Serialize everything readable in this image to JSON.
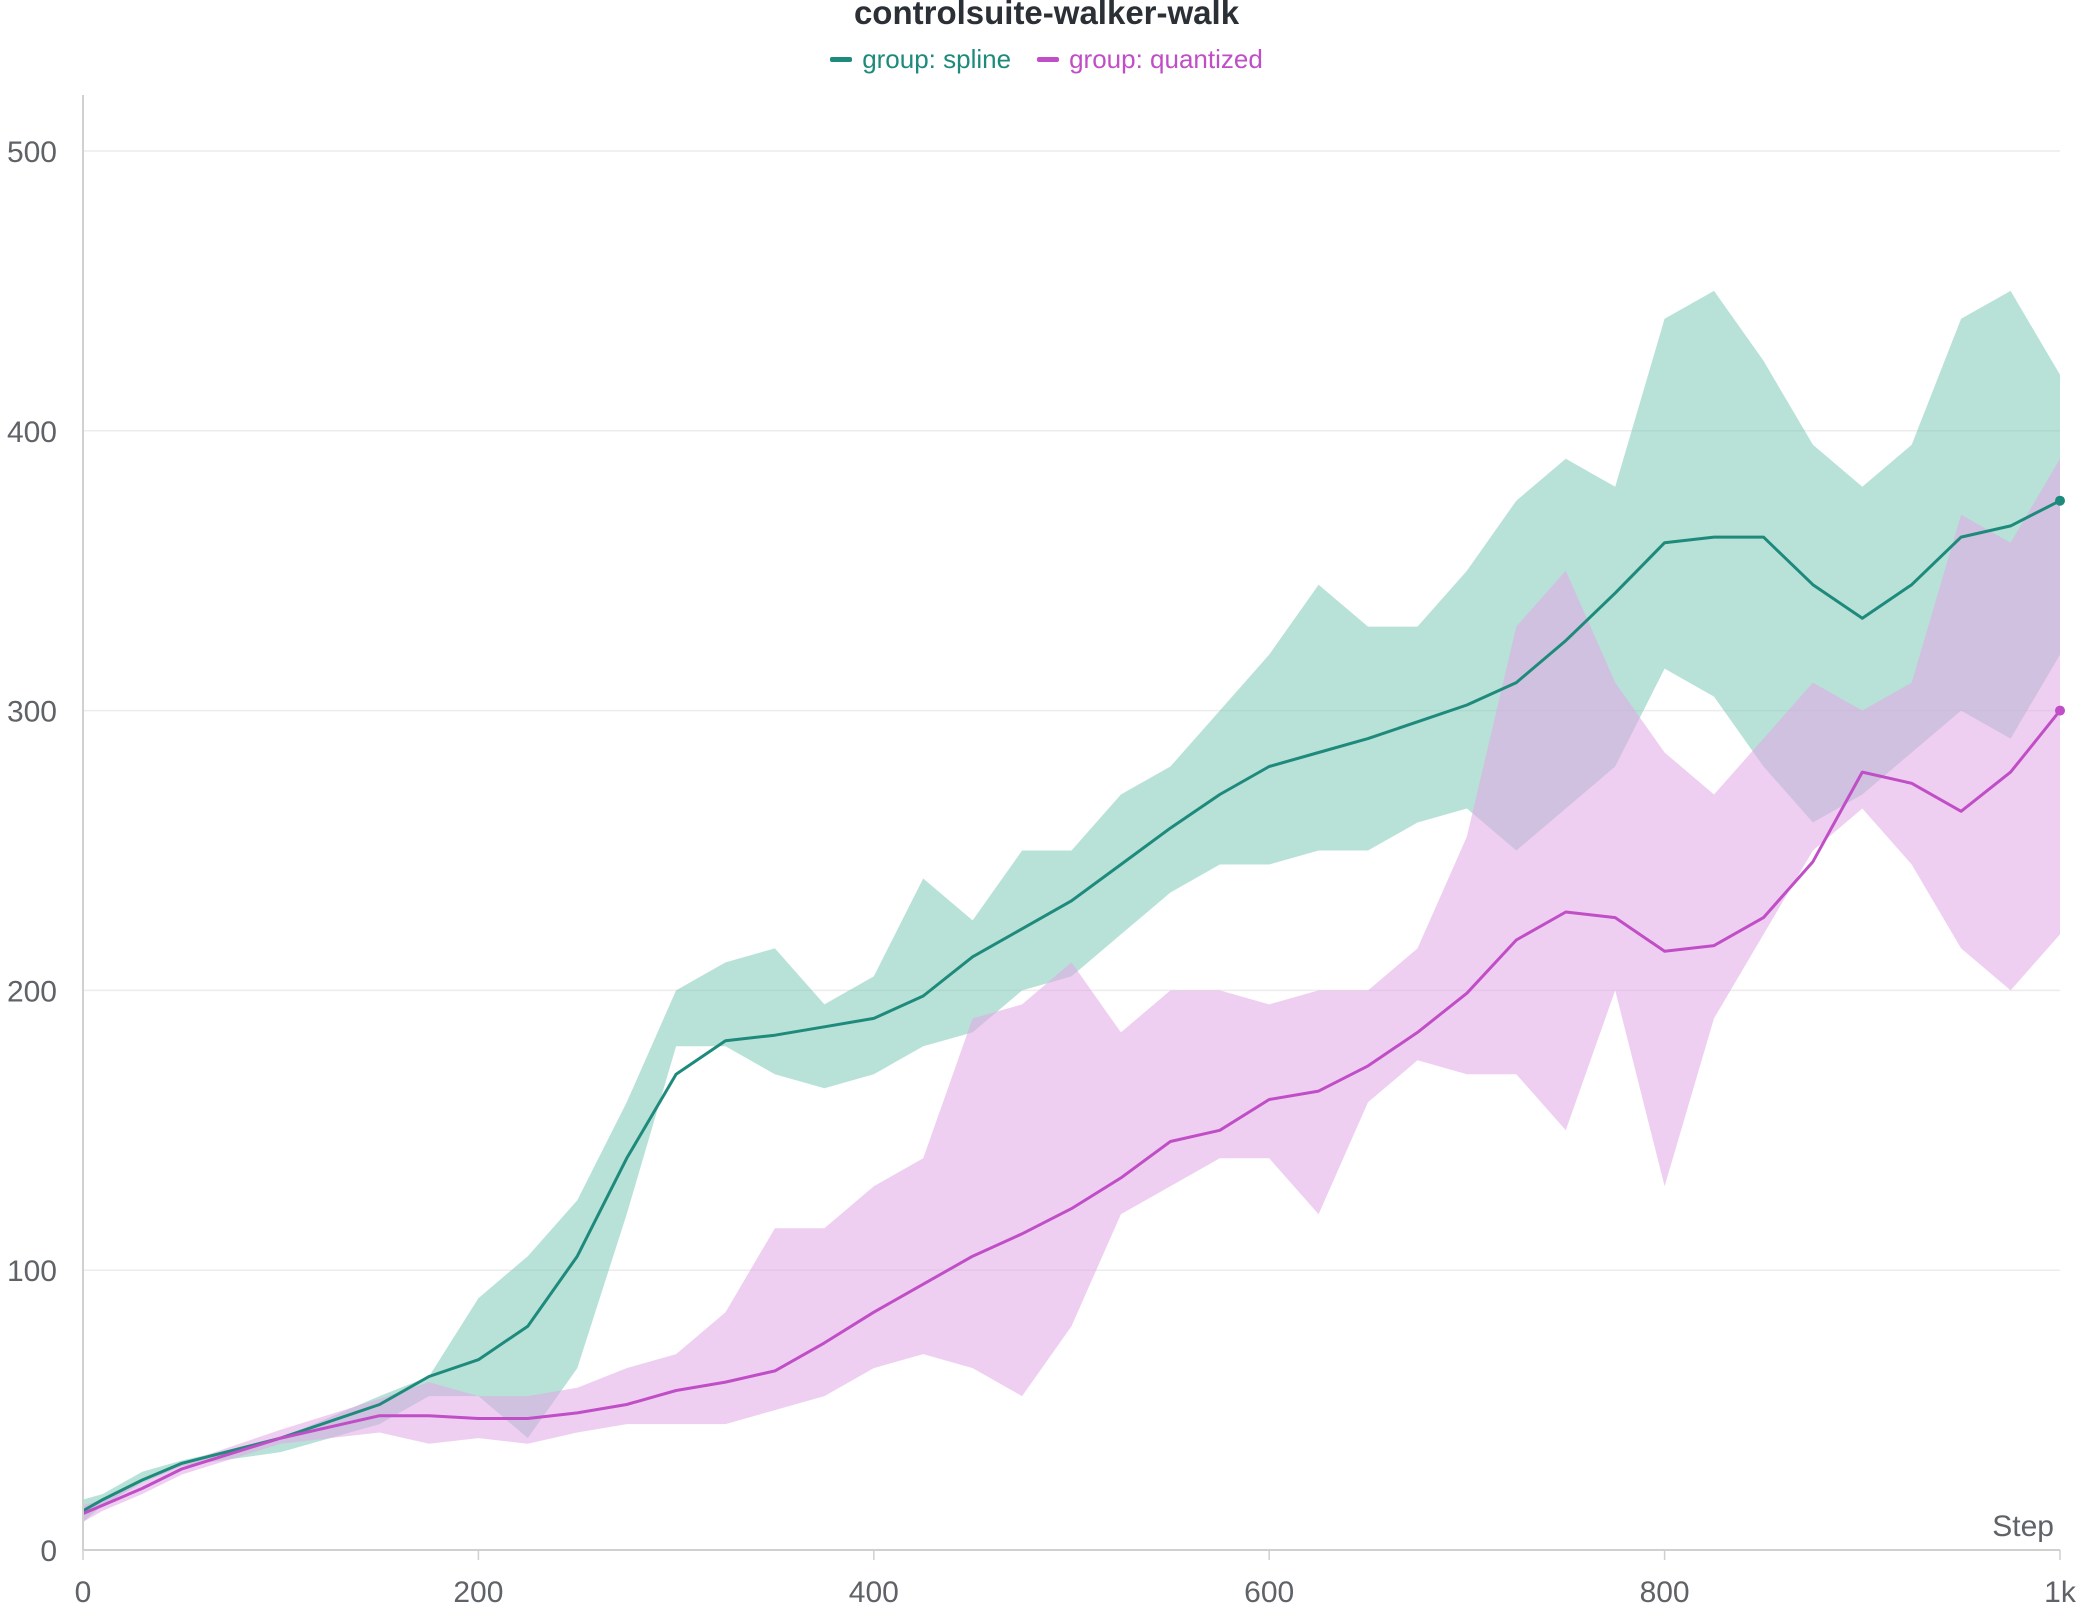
{
  "chart_data": {
    "type": "line",
    "title": "controlsuite-walker-walk",
    "xlabel": "Step",
    "ylabel": "",
    "xlim": [
      0,
      1000
    ],
    "ylim": [
      0,
      520
    ],
    "x_ticks": [
      0,
      200,
      400,
      600,
      800,
      1000
    ],
    "x_tick_labels": [
      "0",
      "200",
      "400",
      "600",
      "800",
      "1k"
    ],
    "y_ticks": [
      0,
      100,
      200,
      300,
      400,
      500
    ],
    "y_tick_labels": [
      "0",
      "100",
      "200",
      "300",
      "400",
      "500"
    ],
    "grid": true,
    "legend_position": "top-center",
    "series": [
      {
        "name": "group: spline",
        "color": "#1e8a7c",
        "band_color": "#7ec8b8",
        "x": [
          0,
          10,
          30,
          50,
          100,
          150,
          175,
          200,
          225,
          250,
          275,
          300,
          325,
          350,
          375,
          400,
          425,
          450,
          475,
          500,
          525,
          550,
          575,
          600,
          625,
          650,
          675,
          700,
          725,
          750,
          775,
          800,
          825,
          850,
          875,
          900,
          925,
          950,
          975,
          1000
        ],
        "values": [
          14,
          18,
          25,
          31,
          40,
          52,
          62,
          68,
          80,
          105,
          140,
          170,
          182,
          184,
          187,
          190,
          198,
          212,
          222,
          232,
          245,
          258,
          270,
          280,
          285,
          290,
          296,
          302,
          310,
          325,
          342,
          360,
          362,
          362,
          345,
          333,
          345,
          362,
          366,
          375
        ],
        "lower": [
          10,
          16,
          24,
          30,
          35,
          45,
          55,
          55,
          40,
          65,
          120,
          180,
          180,
          170,
          165,
          170,
          180,
          185,
          200,
          205,
          220,
          235,
          245,
          245,
          250,
          250,
          260,
          265,
          250,
          265,
          280,
          315,
          305,
          280,
          260,
          270,
          285,
          300,
          290,
          320
        ],
        "upper": [
          18,
          20,
          28,
          32,
          40,
          55,
          62,
          90,
          105,
          125,
          160,
          200,
          210,
          215,
          195,
          205,
          240,
          225,
          250,
          250,
          270,
          280,
          300,
          320,
          345,
          330,
          330,
          350,
          375,
          390,
          380,
          440,
          450,
          425,
          395,
          380,
          395,
          440,
          450,
          420
        ]
      },
      {
        "name": "group: quantized",
        "color": "#c04ec6",
        "band_color": "#e2a8e6",
        "x": [
          0,
          10,
          30,
          50,
          100,
          150,
          175,
          200,
          225,
          250,
          275,
          300,
          325,
          350,
          375,
          400,
          425,
          450,
          475,
          500,
          525,
          550,
          575,
          600,
          625,
          650,
          675,
          700,
          725,
          750,
          775,
          800,
          825,
          850,
          875,
          900,
          925,
          950,
          975,
          1000
        ],
        "values": [
          13,
          16,
          22,
          29,
          40,
          48,
          48,
          47,
          47,
          49,
          52,
          57,
          60,
          64,
          74,
          85,
          95,
          105,
          113,
          122,
          133,
          146,
          150,
          161,
          164,
          173,
          185,
          199,
          218,
          228,
          226,
          214,
          216,
          226,
          246,
          278,
          274,
          264,
          278,
          300
        ],
        "lower": [
          10,
          14,
          20,
          27,
          38,
          42,
          38,
          40,
          38,
          42,
          45,
          45,
          45,
          50,
          55,
          65,
          70,
          65,
          55,
          80,
          120,
          130,
          140,
          140,
          120,
          160,
          175,
          170,
          170,
          150,
          200,
          130,
          190,
          220,
          250,
          265,
          245,
          215,
          200,
          220
        ],
        "upper": [
          16,
          18,
          24,
          31,
          43,
          54,
          60,
          55,
          55,
          58,
          65,
          70,
          85,
          115,
          115,
          130,
          140,
          190,
          195,
          210,
          185,
          200,
          200,
          195,
          200,
          200,
          215,
          255,
          330,
          350,
          310,
          285,
          270,
          290,
          310,
          300,
          310,
          370,
          360,
          390
        ]
      }
    ]
  }
}
